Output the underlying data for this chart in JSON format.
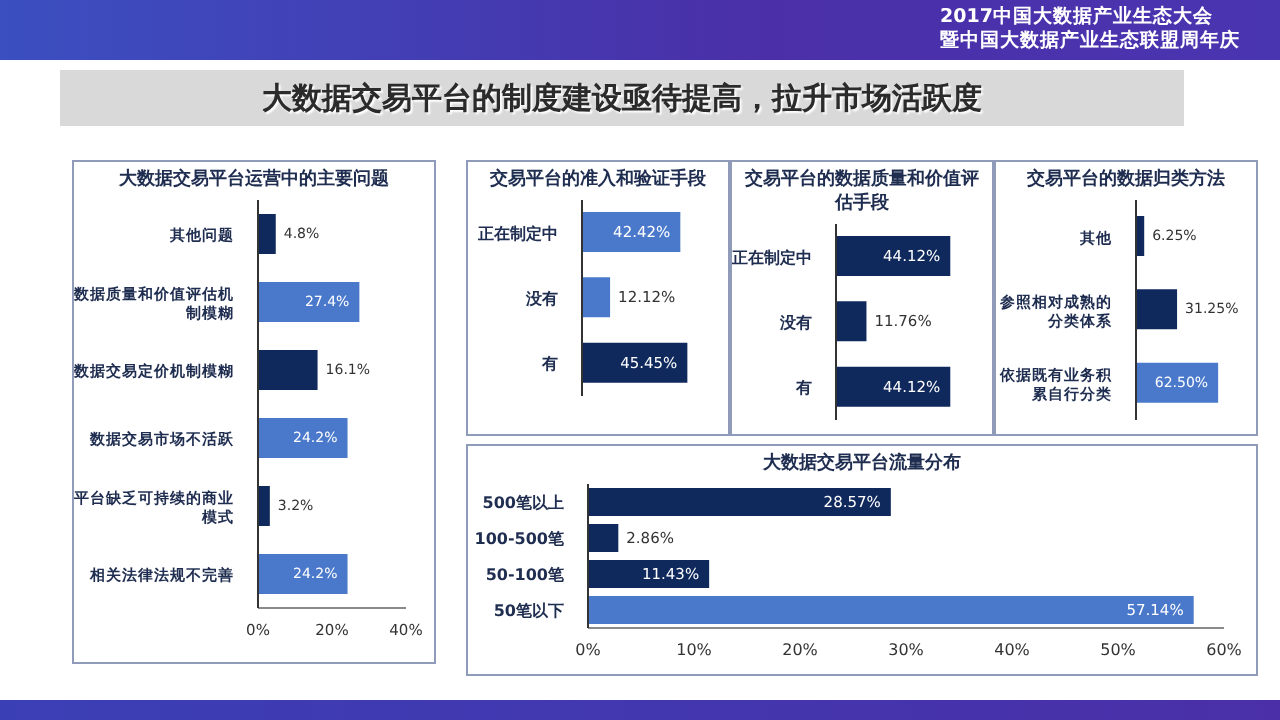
{
  "chart_data": [
    {
      "type": "bar",
      "orientation": "horizontal",
      "title": "大数据交易平台运营中的主要问题",
      "annotations": [
        "大数据交易平台的制度建设亟待提高，拉升市场活跃度",
        "2017中国大数据产业生态大会",
        "暨中国大数据产业生态联盟周年庆"
      ],
      "categories": [
        "其他问题",
        "数据质量和价值评估机制模糊",
        "数据交易定价机制模糊",
        "数据交易市场不活跃",
        "平台缺乏可持续的商业模式",
        "相关法律法规不完善"
      ],
      "values": [
        4.8,
        27.4,
        16.1,
        24.2,
        3.2,
        24.2
      ],
      "value_labels": [
        "4.8%",
        "27.4%",
        "16.1%",
        "24.2%",
        "3.2%",
        "24.2%"
      ],
      "colors": [
        "#10295c",
        "#4a79cb",
        "#10295c",
        "#4a79cb",
        "#10295c",
        "#4a79cb"
      ],
      "xlim": [
        0,
        40
      ],
      "xticks": [
        {
          "value": 0,
          "label": "0%"
        },
        {
          "value": 20,
          "label": "20%"
        },
        {
          "value": 40,
          "label": "40%"
        }
      ],
      "grid": false,
      "legend": false
    },
    {
      "type": "bar",
      "orientation": "horizontal",
      "title": "交易平台的准入和验证手段",
      "categories": [
        "正在制定中",
        "没有",
        "有"
      ],
      "values": [
        42.42,
        12.12,
        45.45
      ],
      "value_labels": [
        "42.42%",
        "12.12%",
        "45.45%"
      ],
      "colors": [
        "#4a79cb",
        "#4a79cb",
        "#10295c"
      ],
      "tick_labels": "y",
      "grid": false,
      "legend": false
    },
    {
      "type": "bar",
      "orientation": "horizontal",
      "title": "交易平台的数据质量和价值评估手段",
      "categories": [
        "正在制定中",
        "没有",
        "有"
      ],
      "values": [
        44.12,
        11.76,
        44.12
      ],
      "value_labels": [
        "44.12%",
        "11.76%",
        "44.12%"
      ],
      "colors": [
        "#10295c",
        "#10295c",
        "#10295c"
      ],
      "tick_labels": "y",
      "grid": false,
      "legend": false
    },
    {
      "type": "bar",
      "orientation": "horizontal",
      "title": "交易平台的数据归类方法",
      "categories": [
        "其他",
        "参照相对成熟的分类体系",
        "依据既有业务积累自行分类"
      ],
      "values": [
        6.25,
        31.25,
        62.5
      ],
      "value_labels": [
        "6.25%",
        "31.25%",
        "62.50%"
      ],
      "colors": [
        "#10295c",
        "#10295c",
        "#4a79cb"
      ],
      "tick_labels": "y",
      "grid": false,
      "legend": false
    },
    {
      "type": "bar",
      "orientation": "horizontal",
      "title": "大数据交易平台流量分布",
      "categories": [
        "500笔以上",
        "100-500笔",
        "50-100笔",
        "50笔以下"
      ],
      "values": [
        28.57,
        2.86,
        11.43,
        57.14
      ],
      "value_labels": [
        "28.57%",
        "2.86%",
        "11.43%",
        "57.14%"
      ],
      "colors": [
        "#10295c",
        "#10295c",
        "#10295c",
        "#4a79cb"
      ],
      "xlim": [
        0,
        60
      ],
      "xticks": [
        {
          "value": 0,
          "label": "0%"
        },
        {
          "value": 10,
          "label": "10%"
        },
        {
          "value": 20,
          "label": "20%"
        },
        {
          "value": 30,
          "label": "30%"
        },
        {
          "value": 40,
          "label": "40%"
        },
        {
          "value": 50,
          "label": "50%"
        },
        {
          "value": 60,
          "label": "60%"
        }
      ],
      "grid": false,
      "legend": false
    }
  ]
}
